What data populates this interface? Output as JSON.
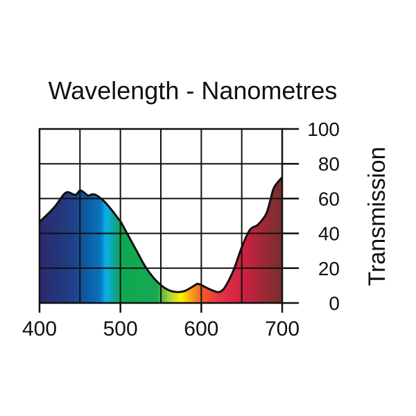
{
  "chart_data": {
    "type": "area",
    "title": "Wavelength - Nanometres",
    "xlabel": "Wavelength - Nanometres",
    "ylabel": "Transmission",
    "xlim": [
      400,
      700
    ],
    "ylim": [
      0,
      100
    ],
    "x_ticks": [
      400,
      500,
      600,
      700
    ],
    "x_tick_labels": [
      "400",
      "500",
      "600",
      "700"
    ],
    "x_grid": [
      400,
      450,
      500,
      550,
      600,
      650,
      700
    ],
    "y_ticks": [
      0,
      20,
      40,
      60,
      80,
      100
    ],
    "y_tick_labels": [
      "0",
      "20",
      "40",
      "60",
      "80",
      "100"
    ],
    "grid": true,
    "series": [
      {
        "name": "Transmission",
        "x": [
          400,
          410,
          420,
          430,
          435,
          440,
          445,
          450,
          455,
          460,
          465,
          470,
          480,
          490,
          498,
          500,
          510,
          520,
          530,
          540,
          550,
          560,
          570,
          580,
          590,
          595,
          600,
          610,
          620,
          625,
          630,
          640,
          650,
          660,
          670,
          680,
          685,
          690,
          700
        ],
        "y": [
          46.6,
          51,
          56,
          62.4,
          63.7,
          62.8,
          62.2,
          64.6,
          63.5,
          61.7,
          62.4,
          62,
          58.4,
          53,
          48,
          47,
          38.5,
          30,
          21.5,
          15,
          10.3,
          7.3,
          6.3,
          7,
          9.6,
          11,
          10.3,
          8,
          6.3,
          7,
          9.6,
          19,
          32,
          42,
          45,
          51,
          58.4,
          66.4,
          72.3
        ]
      }
    ],
    "fill_spectrum": [
      {
        "nm": 400,
        "color": "#2b2a6b"
      },
      {
        "nm": 440,
        "color": "#1f3f86"
      },
      {
        "nm": 460,
        "color": "#0d5ea6"
      },
      {
        "nm": 475,
        "color": "#0b74bb"
      },
      {
        "nm": 482,
        "color": "#0ab0ea"
      },
      {
        "nm": 492,
        "color": "#0fa59a"
      },
      {
        "nm": 500,
        "color": "#0ea853"
      },
      {
        "nm": 545,
        "color": "#17a851"
      },
      {
        "nm": 560,
        "color": "#a6d23a"
      },
      {
        "nm": 575,
        "color": "#fff200"
      },
      {
        "nm": 590,
        "color": "#f7941d"
      },
      {
        "nm": 602,
        "color": "#f05a28"
      },
      {
        "nm": 625,
        "color": "#e63046"
      },
      {
        "nm": 655,
        "color": "#c8213f"
      },
      {
        "nm": 700,
        "color": "#73302d"
      }
    ]
  }
}
